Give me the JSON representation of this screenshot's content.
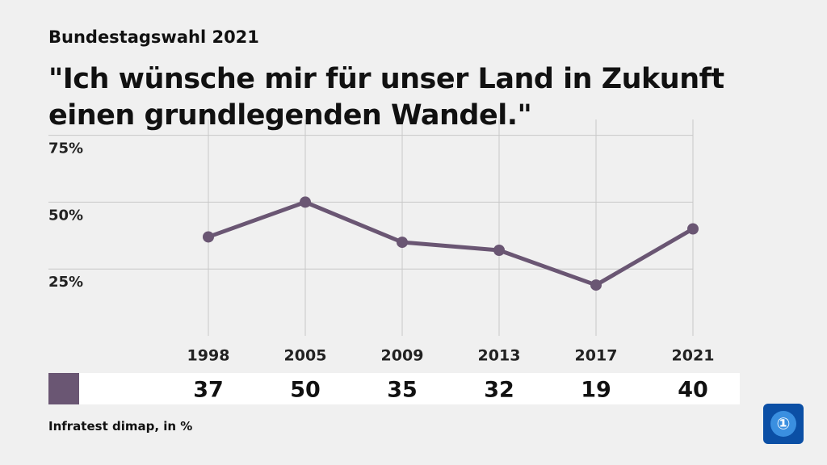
{
  "chart_data": {
    "type": "line",
    "supertitle": "Bundestagswahl 2021",
    "title": "\"Ich wünsche mir für unser Land in Zukunft einen grundlegenden Wandel.\"",
    "source": "Infratest dimap, in %",
    "categories": [
      "1998",
      "2005",
      "2009",
      "2013",
      "2017",
      "2021"
    ],
    "values": [
      37,
      50,
      35,
      32,
      19,
      40
    ],
    "color": "#6a5673",
    "ylim": [
      0,
      80
    ],
    "yticks": [
      {
        "value": 25,
        "label": "25%"
      },
      {
        "value": 50,
        "label": "50%"
      },
      {
        "value": 75,
        "label": "75%"
      }
    ],
    "grid": true
  }
}
